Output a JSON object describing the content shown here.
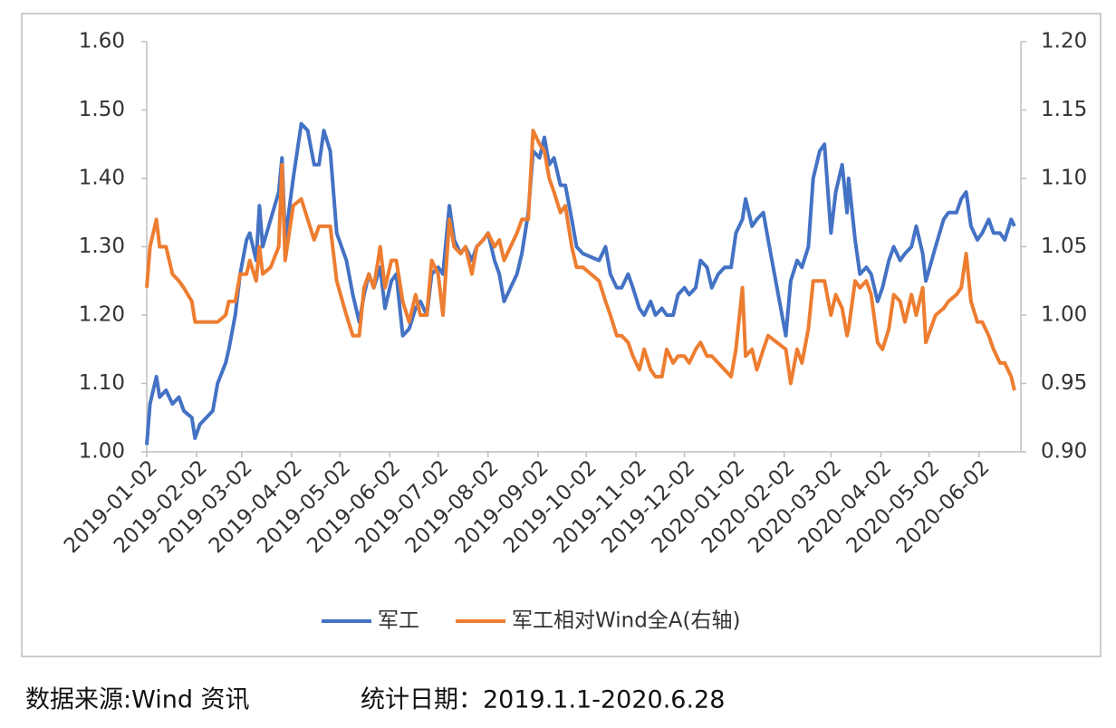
{
  "chart_data": {
    "type": "line",
    "x": [
      "2019-01-02",
      "2019-01-04",
      "2019-01-08",
      "2019-01-10",
      "2019-01-14",
      "2019-01-18",
      "2019-01-22",
      "2019-01-25",
      "2019-01-30",
      "2019-02-01",
      "2019-02-04",
      "2019-02-12",
      "2019-02-15",
      "2019-02-20",
      "2019-02-22",
      "2019-02-26",
      "2019-03-01",
      "2019-03-05",
      "2019-03-07",
      "2019-03-11",
      "2019-03-13",
      "2019-03-15",
      "2019-03-20",
      "2019-03-25",
      "2019-03-27",
      "2019-03-29",
      "2019-04-03",
      "2019-04-08",
      "2019-04-12",
      "2019-04-16",
      "2019-04-19",
      "2019-04-22",
      "2019-04-26",
      "2019-04-30",
      "2019-05-06",
      "2019-05-10",
      "2019-05-14",
      "2019-05-17",
      "2019-05-20",
      "2019-05-23",
      "2019-05-27",
      "2019-05-30",
      "2019-06-03",
      "2019-06-06",
      "2019-06-10",
      "2019-06-14",
      "2019-06-18",
      "2019-06-21",
      "2019-06-25",
      "2019-06-28",
      "2019-07-02",
      "2019-07-05",
      "2019-07-09",
      "2019-07-12",
      "2019-07-16",
      "2019-07-19",
      "2019-07-23",
      "2019-07-26",
      "2019-07-30",
      "2019-08-02",
      "2019-08-06",
      "2019-08-09",
      "2019-08-12",
      "2019-08-16",
      "2019-08-20",
      "2019-08-23",
      "2019-08-27",
      "2019-08-30",
      "2019-09-03",
      "2019-09-06",
      "2019-09-09",
      "2019-09-12",
      "2019-09-16",
      "2019-09-19",
      "2019-09-23",
      "2019-09-26",
      "2019-09-30",
      "2019-10-10",
      "2019-10-14",
      "2019-10-17",
      "2019-10-21",
      "2019-10-24",
      "2019-10-28",
      "2019-10-31",
      "2019-11-04",
      "2019-11-07",
      "2019-11-11",
      "2019-11-14",
      "2019-11-18",
      "2019-11-21",
      "2019-11-25",
      "2019-11-28",
      "2019-12-02",
      "2019-12-05",
      "2019-12-09",
      "2019-12-12",
      "2019-12-16",
      "2019-12-19",
      "2019-12-23",
      "2019-12-27",
      "2019-12-31",
      "2020-01-03",
      "2020-01-07",
      "2020-01-09",
      "2020-01-13",
      "2020-01-16",
      "2020-01-20",
      "2020-01-23",
      "2020-02-03",
      "2020-02-06",
      "2020-02-10",
      "2020-02-13",
      "2020-02-17",
      "2020-02-20",
      "2020-02-24",
      "2020-02-27",
      "2020-03-02",
      "2020-03-05",
      "2020-03-09",
      "2020-03-12",
      "2020-03-13",
      "2020-03-17",
      "2020-03-20",
      "2020-03-24",
      "2020-03-27",
      "2020-03-31",
      "2020-04-03",
      "2020-04-07",
      "2020-04-10",
      "2020-04-14",
      "2020-04-17",
      "2020-04-21",
      "2020-04-24",
      "2020-04-28",
      "2020-04-30",
      "2020-05-06",
      "2020-05-11",
      "2020-05-14",
      "2020-05-19",
      "2020-05-22",
      "2020-05-25",
      "2020-05-28",
      "2020-06-01",
      "2020-06-04",
      "2020-06-08",
      "2020-06-11",
      "2020-06-15",
      "2020-06-18",
      "2020-06-22",
      "2020-06-24"
    ],
    "series": [
      {
        "name": "军工",
        "color": "#4472c4",
        "values": [
          1.01,
          1.07,
          1.11,
          1.08,
          1.09,
          1.07,
          1.08,
          1.06,
          1.05,
          1.02,
          1.04,
          1.06,
          1.1,
          1.13,
          1.15,
          1.2,
          1.26,
          1.31,
          1.32,
          1.28,
          1.36,
          1.3,
          1.34,
          1.38,
          1.43,
          1.31,
          1.4,
          1.48,
          1.47,
          1.42,
          1.42,
          1.47,
          1.44,
          1.32,
          1.28,
          1.23,
          1.19,
          1.23,
          1.26,
          1.24,
          1.27,
          1.21,
          1.25,
          1.26,
          1.17,
          1.18,
          1.21,
          1.22,
          1.2,
          1.26,
          1.27,
          1.26,
          1.36,
          1.31,
          1.29,
          1.3,
          1.28,
          1.3,
          1.31,
          1.32,
          1.28,
          1.26,
          1.22,
          1.24,
          1.26,
          1.29,
          1.35,
          1.44,
          1.43,
          1.46,
          1.42,
          1.43,
          1.39,
          1.39,
          1.34,
          1.3,
          1.29,
          1.28,
          1.3,
          1.26,
          1.24,
          1.24,
          1.26,
          1.24,
          1.21,
          1.2,
          1.22,
          1.2,
          1.21,
          1.2,
          1.2,
          1.23,
          1.24,
          1.23,
          1.24,
          1.28,
          1.27,
          1.24,
          1.26,
          1.27,
          1.27,
          1.32,
          1.34,
          1.37,
          1.33,
          1.34,
          1.35,
          1.31,
          1.17,
          1.25,
          1.28,
          1.27,
          1.3,
          1.4,
          1.44,
          1.45,
          1.32,
          1.38,
          1.42,
          1.35,
          1.4,
          1.31,
          1.26,
          1.27,
          1.26,
          1.22,
          1.24,
          1.28,
          1.3,
          1.28,
          1.29,
          1.3,
          1.33,
          1.29,
          1.25,
          1.3,
          1.34,
          1.35,
          1.35,
          1.37,
          1.38,
          1.33,
          1.31,
          1.32,
          1.34,
          1.32,
          1.32,
          1.31,
          1.34,
          1.33
        ]
      },
      {
        "name": "军工相对Wind全A(右轴)",
        "color": "#ed7d31",
        "axis": "y2",
        "values": [
          1.02,
          1.05,
          1.07,
          1.05,
          1.05,
          1.03,
          1.025,
          1.02,
          1.01,
          0.995,
          0.995,
          0.995,
          0.995,
          1.0,
          1.01,
          1.01,
          1.03,
          1.03,
          1.04,
          1.025,
          1.05,
          1.03,
          1.035,
          1.05,
          1.11,
          1.04,
          1.08,
          1.085,
          1.07,
          1.055,
          1.065,
          1.065,
          1.065,
          1.025,
          1.0,
          0.985,
          0.985,
          1.02,
          1.03,
          1.02,
          1.05,
          1.02,
          1.04,
          1.04,
          1.01,
          0.995,
          1.015,
          1.0,
          1.0,
          1.04,
          1.03,
          1.0,
          1.07,
          1.05,
          1.045,
          1.05,
          1.03,
          1.05,
          1.055,
          1.06,
          1.05,
          1.055,
          1.04,
          1.05,
          1.06,
          1.07,
          1.07,
          1.135,
          1.125,
          1.12,
          1.1,
          1.09,
          1.075,
          1.08,
          1.05,
          1.035,
          1.035,
          1.025,
          1.01,
          1.0,
          0.985,
          0.985,
          0.98,
          0.97,
          0.96,
          0.975,
          0.96,
          0.955,
          0.955,
          0.975,
          0.965,
          0.97,
          0.97,
          0.965,
          0.975,
          0.98,
          0.97,
          0.97,
          0.965,
          0.96,
          0.955,
          0.975,
          1.02,
          0.97,
          0.975,
          0.96,
          0.975,
          0.985,
          0.975,
          0.95,
          0.975,
          0.965,
          0.99,
          1.025,
          1.025,
          1.025,
          1.0,
          1.015,
          1.005,
          0.985,
          0.99,
          1.025,
          1.02,
          1.025,
          1.015,
          0.98,
          0.975,
          0.99,
          1.015,
          1.01,
          0.995,
          1.015,
          1.0,
          1.02,
          0.98,
          1.0,
          1.005,
          1.01,
          1.015,
          1.02,
          1.045,
          1.01,
          0.995,
          0.995,
          0.985,
          0.975,
          0.965,
          0.965,
          0.955,
          0.945
        ]
      }
    ],
    "xlim": [
      "2019-01-02",
      "2020-06-28"
    ],
    "xticks": [
      "2019-01-02",
      "2019-02-02",
      "2019-03-02",
      "2019-04-02",
      "2019-05-02",
      "2019-06-02",
      "2019-07-02",
      "2019-08-02",
      "2019-09-02",
      "2019-10-02",
      "2019-11-02",
      "2019-12-02",
      "2020-01-02",
      "2020-02-02",
      "2020-03-02",
      "2020-04-02",
      "2020-05-02",
      "2020-06-02"
    ],
    "ylim": [
      1.0,
      1.6
    ],
    "yticks": [
      {
        "value": 1.0,
        "label": "1.00"
      },
      {
        "value": 1.1,
        "label": "1.10"
      },
      {
        "value": 1.2,
        "label": "1.20"
      },
      {
        "value": 1.3,
        "label": "1.30"
      },
      {
        "value": 1.4,
        "label": "1.40"
      },
      {
        "value": 1.5,
        "label": "1.50"
      },
      {
        "value": 1.6,
        "label": "1.60"
      }
    ],
    "y2lim": [
      0.9,
      1.2
    ],
    "y2ticks": [
      {
        "value": 0.9,
        "label": "0.90"
      },
      {
        "value": 0.95,
        "label": "0.95"
      },
      {
        "value": 1.0,
        "label": "1.00"
      },
      {
        "value": 1.05,
        "label": "1.05"
      },
      {
        "value": 1.1,
        "label": "1.10"
      },
      {
        "value": 1.15,
        "label": "1.15"
      },
      {
        "value": 1.2,
        "label": "1.20"
      }
    ],
    "grid": false,
    "legend": "bottom"
  },
  "footer": {
    "source": "数据来源:Wind 资讯",
    "period": "统计日期：2019.1.1-2020.6.28"
  }
}
